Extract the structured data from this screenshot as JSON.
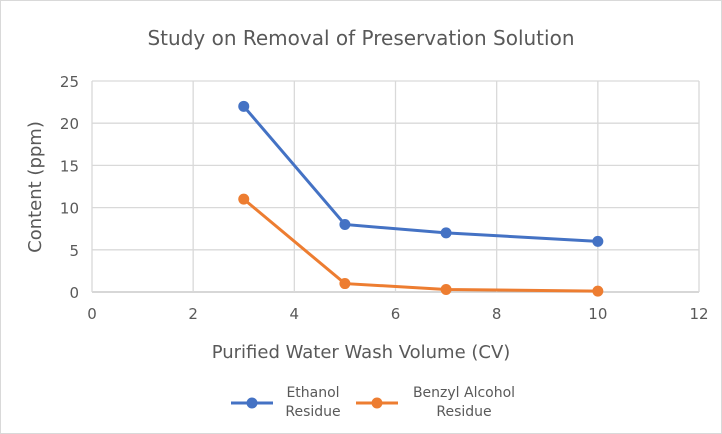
{
  "chart_data": {
    "type": "line",
    "title": "Study on Removal of Preservation Solution",
    "xlabel": "Purified Water Wash Volume (CV)",
    "ylabel": "Content (ppm)",
    "xlim": [
      0,
      12
    ],
    "ylim": [
      0,
      25
    ],
    "xticks": [
      0,
      2,
      4,
      6,
      8,
      10,
      12
    ],
    "yticks": [
      0,
      5,
      10,
      15,
      20,
      25
    ],
    "grid": true,
    "legend": "bottom",
    "series": [
      {
        "name": "Ethanol Residue",
        "name_lines": [
          "Ethanol",
          "Residue"
        ],
        "color": "#4472C4",
        "x": [
          3,
          5,
          7,
          10
        ],
        "y": [
          22,
          8,
          7,
          6
        ]
      },
      {
        "name": "Benzyl Alcohol Residue",
        "name_lines": [
          "Benzyl Alcohol",
          "Residue"
        ],
        "color": "#ED7D31",
        "x": [
          3,
          5,
          7,
          10
        ],
        "y": [
          11,
          1,
          0.3,
          0.1
        ]
      }
    ]
  }
}
